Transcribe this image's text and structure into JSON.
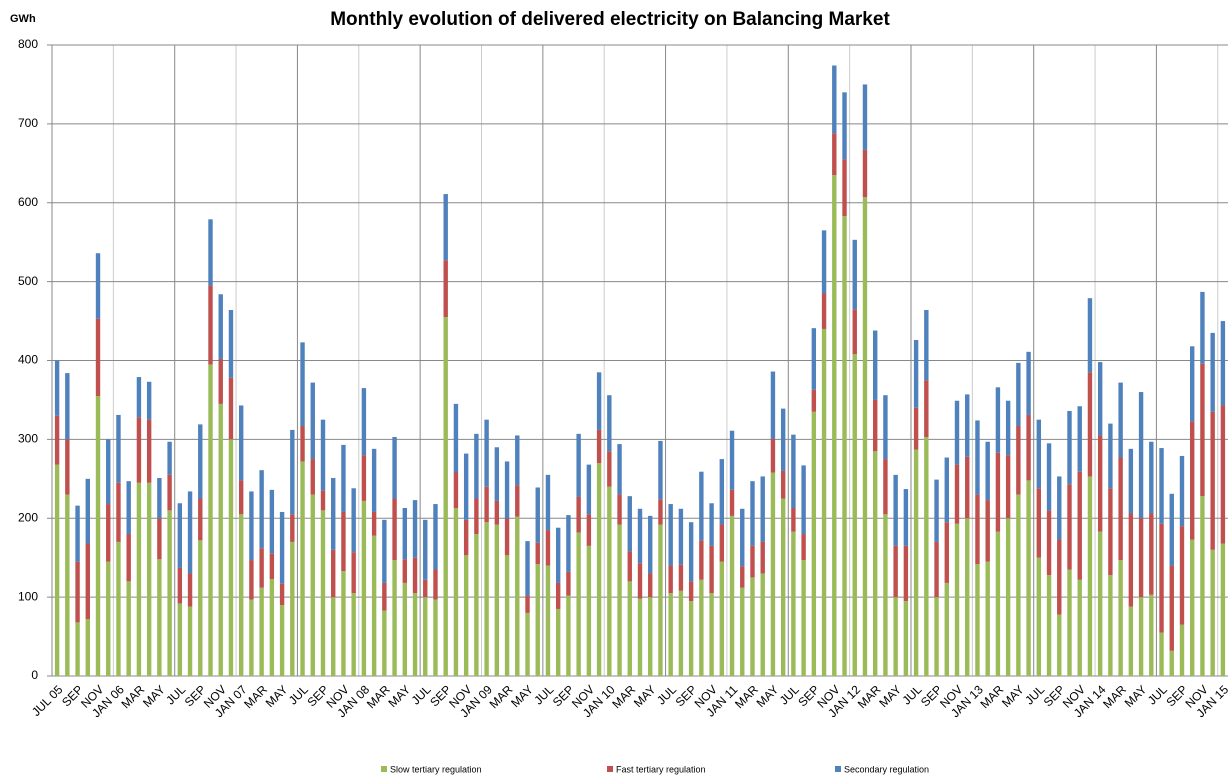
{
  "chart_data": {
    "type": "stacked_bar",
    "title": "Monthly evolution of delivered electricity on Balancing Market",
    "y_label": "GWh",
    "categories": [
      "JUL 05",
      null,
      "SEP",
      null,
      "NOV",
      null,
      "JAN 06",
      null,
      "MAR",
      null,
      "MAY",
      null,
      "JUL",
      null,
      "SEP",
      null,
      "NOV",
      null,
      "JAN 07",
      null,
      "MAR",
      null,
      "MAY",
      null,
      "JUL",
      null,
      "SEP",
      null,
      "NOV",
      null,
      "JAN 08",
      null,
      "MAR",
      null,
      "MAY",
      null,
      "JUL",
      null,
      "SEP",
      null,
      "NOV",
      null,
      "JAN 09",
      null,
      "MAR",
      null,
      "MAY",
      null,
      "JUL",
      null,
      "SEP",
      null,
      "NOV",
      null,
      "JAN 10",
      null,
      "MAR",
      null,
      "MAY",
      null,
      "JUL",
      null,
      "SEP",
      null,
      "NOV",
      null,
      "JAN 11",
      null,
      "MAR",
      null,
      "MAY",
      null,
      "JUL",
      null,
      "SEP",
      null,
      "NOV",
      null,
      "JAN 12",
      null,
      "MAR",
      null,
      "MAY",
      null,
      "JUL",
      null,
      "SEP",
      null,
      "NOV",
      null,
      "JAN 13",
      null,
      "MAR",
      null,
      "MAY",
      null,
      "JUL",
      null,
      "SEP",
      null,
      "NOV",
      null,
      "JAN 14",
      null,
      "MAR",
      null,
      "MAY",
      null,
      "JUL",
      null,
      "SEP",
      null,
      "NOV",
      null,
      "JAN 15"
    ],
    "series": [
      {
        "name": "Slow tertiary regulation",
        "color": "#9bbb59",
        "values": [
          268,
          230,
          68,
          72,
          355,
          145,
          170,
          120,
          245,
          245,
          148,
          210,
          92,
          88,
          172,
          395,
          345,
          300,
          205,
          97,
          112,
          123,
          90,
          170,
          272,
          230,
          210,
          100,
          133,
          105,
          222,
          178,
          83,
          147,
          118,
          105,
          100,
          97,
          455,
          213,
          153,
          180,
          195,
          192,
          153,
          202,
          80,
          142,
          140,
          85,
          102,
          182,
          165,
          270,
          240,
          192,
          120,
          98,
          100,
          192,
          105,
          108,
          95,
          122,
          105,
          145,
          203,
          112,
          125,
          130,
          258,
          225,
          183,
          147,
          335,
          440,
          635,
          583,
          408,
          607,
          285,
          205,
          100,
          95,
          287,
          303,
          100,
          118,
          193,
          200,
          142,
          145,
          183,
          200,
          230,
          248,
          150,
          128,
          78,
          135,
          122,
          253,
          183,
          128,
          147,
          88,
          100,
          103,
          55,
          32,
          65,
          173,
          228,
          160,
          168
        ]
      },
      {
        "name": "Fast tertiary regulation",
        "color": "#c0504d",
        "values": [
          62,
          70,
          77,
          96,
          98,
          73,
          75,
          60,
          83,
          80,
          52,
          45,
          45,
          42,
          53,
          100,
          57,
          78,
          43,
          50,
          50,
          32,
          27,
          35,
          45,
          45,
          25,
          60,
          75,
          52,
          58,
          30,
          35,
          78,
          30,
          45,
          22,
          38,
          72,
          45,
          45,
          45,
          45,
          30,
          47,
          40,
          22,
          27,
          45,
          33,
          30,
          45,
          40,
          42,
          45,
          38,
          38,
          45,
          30,
          32,
          35,
          33,
          25,
          50,
          60,
          47,
          33,
          27,
          40,
          40,
          43,
          35,
          30,
          33,
          28,
          45,
          53,
          72,
          57,
          60,
          65,
          70,
          65,
          70,
          53,
          72,
          70,
          77,
          75,
          78,
          88,
          78,
          100,
          80,
          87,
          83,
          88,
          82,
          95,
          108,
          137,
          132,
          122,
          110,
          130,
          118,
          100,
          103,
          138,
          108,
          125,
          150,
          168,
          175,
          175
        ]
      },
      {
        "name": "Secondary regulation",
        "color": "#4f81bd",
        "values": [
          70,
          84,
          71,
          82,
          83,
          82,
          86,
          67,
          51,
          48,
          51,
          42,
          82,
          104,
          94,
          84,
          82,
          86,
          95,
          87,
          99,
          81,
          91,
          107,
          106,
          97,
          90,
          91,
          85,
          81,
          85,
          80,
          80,
          78,
          65,
          73,
          76,
          83,
          84,
          87,
          84,
          82,
          85,
          68,
          72,
          63,
          69,
          70,
          70,
          70,
          72,
          80,
          63,
          73,
          71,
          64,
          70,
          69,
          73,
          74,
          78,
          71,
          75,
          87,
          54,
          83,
          75,
          73,
          82,
          83,
          85,
          79,
          93,
          87,
          78,
          80,
          86,
          85,
          88,
          83,
          88,
          81,
          90,
          72,
          86,
          89,
          79,
          82,
          81,
          79,
          94,
          74,
          83,
          69,
          80,
          80,
          87,
          85,
          80,
          93,
          83,
          94,
          93,
          82,
          95,
          82,
          160,
          91,
          96,
          91,
          89,
          95,
          91,
          100,
          107
        ]
      }
    ],
    "ylim": [
      0,
      800
    ],
    "yticks": [
      0,
      100,
      200,
      300,
      400,
      500,
      600,
      700,
      800
    ],
    "grid": true
  }
}
